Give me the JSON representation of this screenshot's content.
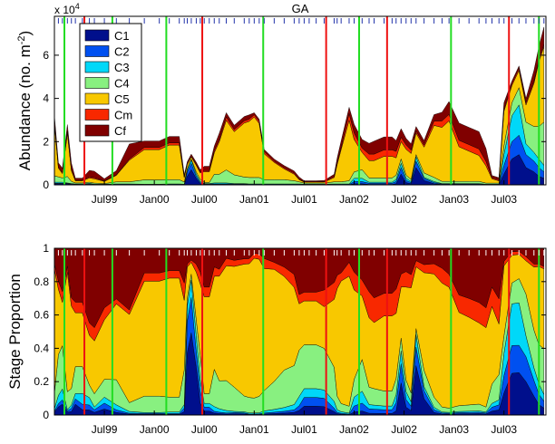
{
  "chart_data": [
    {
      "type": "area",
      "title": "GA",
      "ylabel": "Abundance (no. m",
      "ylabel_sup": "-2",
      "ylabel_end": ")",
      "scale_label": "x 10",
      "scale_exp": "4",
      "ylim": [
        0,
        7.8
      ],
      "yticks": [
        0,
        2,
        4,
        6
      ],
      "xlim": [
        1999.0,
        2003.92
      ],
      "xticks": [
        1999.5,
        2000.0,
        2000.5,
        2001.0,
        2001.5,
        2002.0,
        2002.5,
        2003.0,
        2003.5
      ],
      "xtick_labels": [
        "Jul99",
        "Jan00",
        "Jul00",
        "Jan01",
        "Jul01",
        "Jan02",
        "Jul02",
        "Jan03",
        "Jul03"
      ],
      "legend_position": "top-left",
      "legend": [
        {
          "name": "C1",
          "color": "#000f8c"
        },
        {
          "name": "C2",
          "color": "#0050f0"
        },
        {
          "name": "C3",
          "color": "#00d8f8"
        },
        {
          "name": "C4",
          "color": "#88f080"
        },
        {
          "name": "C5",
          "color": "#f8c800"
        },
        {
          "name": "Cm",
          "color": "#f82800"
        },
        {
          "name": "Cf",
          "color": "#800000"
        }
      ],
      "x": [
        1999.0,
        1999.04,
        1999.08,
        1999.13,
        1999.17,
        1999.21,
        1999.28,
        1999.35,
        1999.4,
        1999.5,
        1999.62,
        1999.75,
        1999.9,
        2000.05,
        2000.15,
        2000.25,
        2000.3,
        2000.33,
        2000.37,
        2000.42,
        2000.46,
        2000.5,
        2000.55,
        2000.6,
        2000.65,
        2000.72,
        2000.8,
        2000.9,
        2000.95,
        2001.0,
        2001.05,
        2001.1,
        2001.2,
        2001.3,
        2001.4,
        2001.45,
        2001.5,
        2001.55,
        2001.62,
        2001.7,
        2001.8,
        2001.83,
        2001.87,
        2001.95,
        2002.0,
        2002.08,
        2002.15,
        2002.2,
        2002.3,
        2002.38,
        2002.42,
        2002.47,
        2002.52,
        2002.57,
        2002.62,
        2002.7,
        2002.8,
        2002.88,
        2002.95,
        2003.05,
        2003.15,
        2003.25,
        2003.32,
        2003.38,
        2003.45,
        2003.5,
        2003.58,
        2003.65,
        2003.72,
        2003.8,
        2003.85,
        2003.9
      ],
      "series": [
        {
          "name": "C1",
          "values": [
            0.05,
            0.05,
            0.05,
            0.05,
            0.02,
            0.02,
            0.01,
            0.02,
            0.01,
            0.01,
            0.01,
            0.01,
            0.01,
            0.01,
            0.01,
            0.01,
            0.01,
            0.4,
            0.7,
            0.3,
            0.05,
            0.02,
            0.02,
            0.02,
            0.02,
            0.02,
            0.02,
            0.02,
            0.01,
            0.01,
            0.01,
            0.01,
            0.01,
            0.01,
            0.01,
            0.01,
            0.01,
            0.01,
            0.01,
            0.01,
            0.01,
            0.01,
            0.01,
            0.01,
            0.05,
            0.05,
            0.02,
            0.02,
            0.02,
            0.02,
            0.05,
            0.5,
            0.1,
            0.05,
            0.8,
            0.2,
            0.05,
            0.02,
            0.02,
            0.02,
            0.02,
            0.02,
            0.01,
            0.01,
            0.01,
            0.5,
            1.2,
            1.4,
            0.8,
            0.6,
            0.4,
            0.3
          ]
        },
        {
          "name": "C2",
          "values": [
            0.02,
            0.02,
            0.02,
            0.02,
            0.02,
            0.01,
            0.01,
            0.02,
            0.01,
            0.01,
            0.01,
            0.01,
            0.01,
            0.01,
            0.01,
            0.01,
            0.01,
            0.2,
            0.3,
            0.1,
            0.05,
            0.02,
            0.02,
            0.02,
            0.02,
            0.02,
            0.02,
            0.02,
            0.01,
            0.01,
            0.01,
            0.01,
            0.01,
            0.01,
            0.01,
            0.01,
            0.01,
            0.01,
            0.01,
            0.01,
            0.01,
            0.01,
            0.01,
            0.01,
            0.1,
            0.1,
            0.05,
            0.05,
            0.05,
            0.05,
            0.1,
            0.3,
            0.1,
            0.05,
            0.3,
            0.1,
            0.05,
            0.02,
            0.02,
            0.02,
            0.02,
            0.02,
            0.01,
            0.01,
            0.01,
            0.4,
            0.8,
            0.9,
            0.6,
            0.5,
            0.4,
            0.3
          ]
        },
        {
          "name": "C3",
          "values": [
            0.05,
            0.05,
            0.05,
            0.02,
            0.02,
            0.01,
            0.02,
            0.03,
            0.01,
            0.01,
            0.02,
            0.02,
            0.01,
            0.01,
            0.02,
            0.02,
            0.01,
            0.1,
            0.15,
            0.1,
            0.05,
            0.02,
            0.02,
            0.05,
            0.05,
            0.05,
            0.02,
            0.02,
            0.02,
            0.02,
            0.02,
            0.02,
            0.02,
            0.02,
            0.02,
            0.02,
            0.01,
            0.01,
            0.01,
            0.01,
            0.02,
            0.02,
            0.02,
            0.02,
            0.15,
            0.15,
            0.05,
            0.05,
            0.05,
            0.05,
            0.1,
            0.2,
            0.1,
            0.05,
            0.2,
            0.05,
            0.05,
            0.02,
            0.02,
            0.02,
            0.02,
            0.02,
            0.01,
            0.01,
            0.01,
            0.5,
            1.2,
            1.4,
            0.5,
            0.4,
            0.4,
            0.3
          ]
        },
        {
          "name": "C4",
          "values": [
            0.3,
            0.25,
            0.2,
            0.3,
            0.1,
            0.05,
            0.05,
            0.05,
            0.05,
            0.03,
            0.1,
            0.1,
            0.2,
            0.2,
            0.2,
            0.2,
            0.1,
            0.05,
            0.05,
            0.1,
            0.1,
            0.05,
            0.05,
            0.4,
            0.4,
            0.6,
            0.4,
            0.3,
            0.3,
            0.3,
            0.3,
            0.2,
            0.2,
            0.2,
            0.15,
            0.1,
            0.05,
            0.05,
            0.05,
            0.05,
            0.1,
            0.1,
            0.1,
            0.15,
            0.3,
            0.4,
            0.2,
            0.2,
            0.2,
            0.2,
            0.2,
            0.2,
            0.15,
            0.1,
            0.1,
            0.2,
            0.2,
            0.1,
            0.1,
            0.1,
            0.1,
            0.1,
            0.05,
            0.05,
            0.05,
            0.4,
            0.6,
            0.8,
            1.0,
            1.2,
            1.5,
            2.0
          ]
        },
        {
          "name": "C5",
          "values": [
            2.4,
            0.4,
            0.2,
            2.0,
            0.5,
            0.1,
            0.1,
            0.2,
            0.2,
            0.1,
            0.3,
            1.0,
            1.4,
            1.4,
            1.6,
            1.6,
            0.2,
            0.2,
            0.1,
            0.3,
            0.3,
            0.5,
            0.5,
            1.0,
            1.5,
            2.3,
            2.0,
            2.5,
            2.6,
            2.8,
            2.5,
            1.2,
            0.8,
            0.5,
            0.3,
            0.1,
            0.05,
            0.05,
            0.05,
            0.05,
            0.2,
            0.8,
            1.5,
            2.8,
            1.5,
            0.8,
            0.8,
            0.8,
            1.0,
            1.0,
            0.8,
            0.8,
            1.2,
            1.2,
            1.0,
            1.2,
            2.4,
            2.5,
            2.8,
            1.6,
            1.4,
            1.2,
            0.8,
            0.2,
            0.1,
            1.6,
            0.8,
            0.8,
            0.8,
            2.0,
            3.0,
            3.5
          ]
        },
        {
          "name": "Cm",
          "values": [
            0.1,
            0.05,
            0.05,
            0.1,
            0.05,
            0.02,
            0.02,
            0.05,
            0.05,
            0.02,
            0.02,
            0.05,
            0.1,
            0.1,
            0.1,
            0.1,
            0.05,
            0.02,
            0.02,
            0.05,
            0.05,
            0.05,
            0.05,
            0.1,
            0.1,
            0.15,
            0.1,
            0.1,
            0.1,
            0.1,
            0.1,
            0.1,
            0.05,
            0.05,
            0.05,
            0.02,
            0.01,
            0.01,
            0.01,
            0.02,
            0.05,
            0.1,
            0.1,
            0.3,
            0.3,
            0.2,
            0.3,
            0.3,
            0.3,
            0.3,
            0.3,
            0.2,
            0.2,
            0.15,
            0.1,
            0.1,
            0.2,
            0.3,
            0.3,
            0.3,
            0.3,
            0.3,
            0.2,
            0.05,
            0.05,
            0.1,
            0.1,
            0.1,
            0.1,
            0.1,
            0.1,
            0.1
          ]
        },
        {
          "name": "Cf",
          "values": [
            0.3,
            0.2,
            0.2,
            0.3,
            0.3,
            0.1,
            0.1,
            0.3,
            0.3,
            0.1,
            0.2,
            0.7,
            0.3,
            0.3,
            0.3,
            0.3,
            0.1,
            0.1,
            0.1,
            0.1,
            0.1,
            0.2,
            0.2,
            0.2,
            0.3,
            0.2,
            0.2,
            0.2,
            0.2,
            0.1,
            0.1,
            0.1,
            0.1,
            0.1,
            0.1,
            0.1,
            0.05,
            0.05,
            0.05,
            0.05,
            0.1,
            0.2,
            0.3,
            0.3,
            0.4,
            0.4,
            0.5,
            0.6,
            0.6,
            0.6,
            0.5,
            0.4,
            0.3,
            0.3,
            0.2,
            0.2,
            0.3,
            0.4,
            0.6,
            0.8,
            0.8,
            0.8,
            0.6,
            0.1,
            0.1,
            0.3,
            0.1,
            0.1,
            0.2,
            0.5,
            0.6,
            0.8
          ]
        }
      ],
      "markers_green_x": [
        1999.1,
        1999.58,
        2000.12,
        2001.09,
        2002.05,
        2002.97,
        2003.85
      ],
      "markers_red_x": [
        1999.3,
        2000.48,
        2001.72,
        2002.33,
        2003.55
      ]
    },
    {
      "type": "area",
      "ylabel": "Stage Proportion",
      "ylim": [
        0,
        1
      ],
      "yticks": [
        0,
        0.2,
        0.4,
        0.6,
        0.8,
        1
      ],
      "ytick_labels": [
        "0",
        "0.2",
        "0.4",
        "0.6",
        "0.8",
        "1"
      ],
      "xlim": [
        1999.0,
        2003.92
      ],
      "xticks": [
        1999.5,
        2000.0,
        2000.5,
        2001.0,
        2001.5,
        2002.0,
        2002.5,
        2003.0,
        2003.5
      ],
      "xtick_labels": [
        "Jul99",
        "Jan00",
        "Jul00",
        "Jan01",
        "Jul01",
        "Jan02",
        "Jul02",
        "Jan03",
        "Jul03"
      ],
      "proportions_of": "upper panel series",
      "markers_green_x": [
        1999.1,
        1999.58,
        2000.12,
        2001.09,
        2002.05,
        2002.97,
        2003.85
      ],
      "markers_red_x": [
        1999.3,
        2000.48,
        2001.72,
        2002.33,
        2003.55
      ]
    }
  ]
}
